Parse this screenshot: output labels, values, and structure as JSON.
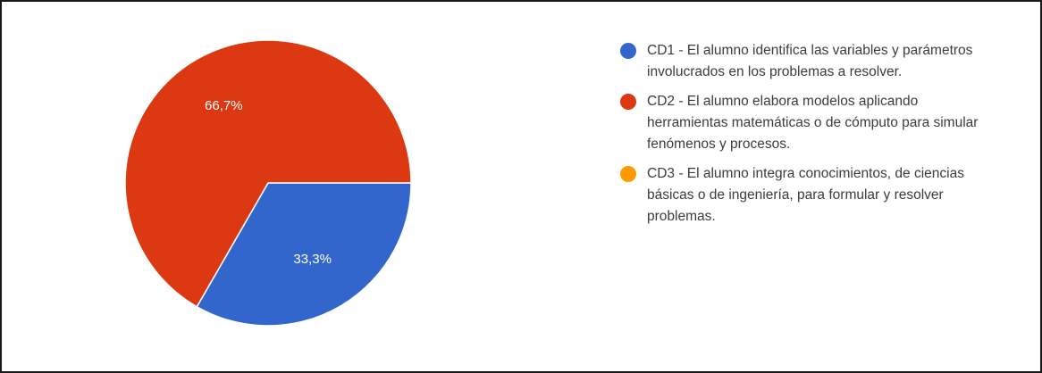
{
  "chart_data": {
    "type": "pie",
    "slices": [
      {
        "label": "CD1 - El alumno identifica las variables y parámetros involucrados en los problemas a resolver.",
        "value": 33.3,
        "display": "33,3%",
        "color": "#3366CC"
      },
      {
        "label": "CD2 - El alumno elabora modelos aplicando herramientas matemáticas o de cómputo para simular fenómenos y procesos.",
        "value": 66.7,
        "display": "66,7%",
        "color": "#DC3912"
      },
      {
        "label": "CD3 - El alumno integra conocimientos, de ciencias básicas o de ingeniería, para formular y resolver problemas.",
        "value": 0,
        "display": "",
        "color": "#FF9900"
      }
    ],
    "legend_position": "right"
  }
}
